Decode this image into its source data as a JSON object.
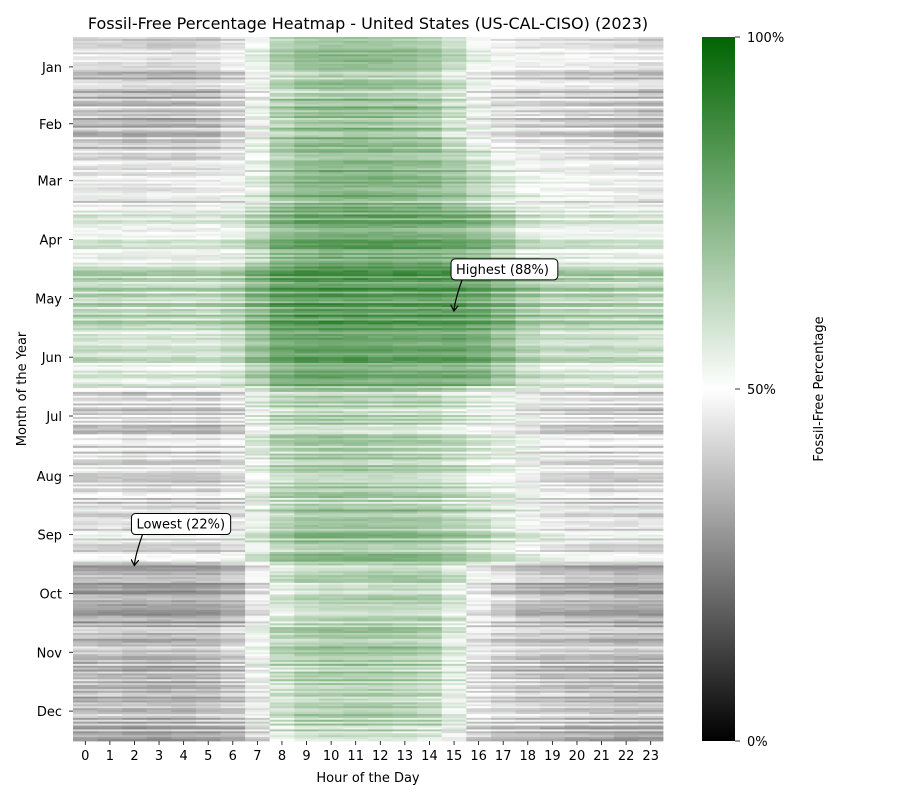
{
  "chart_data": {
    "type": "heatmap",
    "title": "Fossil-Free Percentage Heatmap - United States (US-CAL-CISO) (2023)",
    "xlabel": "Hour of the Day",
    "ylabel": "Month of the Year",
    "x_ticks": [
      "0",
      "1",
      "2",
      "3",
      "4",
      "5",
      "6",
      "7",
      "8",
      "9",
      "10",
      "11",
      "12",
      "13",
      "14",
      "15",
      "16",
      "17",
      "18",
      "19",
      "20",
      "21",
      "22",
      "23"
    ],
    "y_ticks": [
      "Jan",
      "Feb",
      "Mar",
      "Apr",
      "May",
      "Jun",
      "Jul",
      "Aug",
      "Sep",
      "Oct",
      "Nov",
      "Dec"
    ],
    "days_per_month": [
      31,
      28,
      31,
      30,
      31,
      30,
      31,
      31,
      30,
      31,
      30,
      31
    ],
    "value_range": [
      0,
      100
    ],
    "colorbar": {
      "label": "Fossil-Free Percentage",
      "ticks": [
        "0%",
        "50%",
        "100%"
      ],
      "colors": {
        "low": "#000000",
        "mid": "#ffffff",
        "high": "#006400"
      }
    },
    "monthly_hourly_avg": [
      [
        40,
        40,
        39,
        38,
        38,
        39,
        42,
        50,
        62,
        66,
        67,
        67,
        67,
        66,
        64,
        58,
        49,
        45,
        43,
        43,
        42,
        42,
        41,
        40
      ],
      [
        39,
        39,
        38,
        38,
        38,
        39,
        42,
        52,
        66,
        70,
        71,
        71,
        71,
        70,
        68,
        61,
        51,
        46,
        44,
        43,
        42,
        41,
        40,
        39
      ],
      [
        46,
        46,
        45,
        45,
        45,
        46,
        48,
        55,
        68,
        72,
        73,
        73,
        73,
        72,
        71,
        68,
        62,
        56,
        52,
        50,
        49,
        48,
        47,
        46
      ],
      [
        54,
        54,
        53,
        53,
        53,
        53,
        55,
        63,
        73,
        76,
        77,
        77,
        77,
        77,
        76,
        75,
        72,
        66,
        58,
        55,
        55,
        55,
        54,
        54
      ],
      [
        63,
        63,
        62,
        62,
        62,
        62,
        64,
        72,
        79,
        81,
        81,
        81,
        80,
        80,
        80,
        80,
        78,
        73,
        67,
        64,
        64,
        64,
        63,
        63
      ],
      [
        59,
        59,
        58,
        58,
        58,
        58,
        60,
        69,
        77,
        79,
        79,
        79,
        78,
        78,
        78,
        78,
        76,
        70,
        63,
        60,
        60,
        60,
        59,
        59
      ],
      [
        42,
        42,
        41,
        41,
        41,
        40,
        44,
        53,
        62,
        64,
        64,
        64,
        63,
        63,
        62,
        59,
        55,
        52,
        48,
        44,
        43,
        42,
        42,
        42
      ],
      [
        43,
        43,
        42,
        42,
        42,
        41,
        44,
        53,
        62,
        65,
        65,
        65,
        64,
        64,
        63,
        60,
        56,
        53,
        49,
        45,
        44,
        43,
        43,
        43
      ],
      [
        46,
        46,
        45,
        45,
        45,
        44,
        47,
        56,
        66,
        70,
        70,
        70,
        70,
        70,
        69,
        66,
        62,
        58,
        53,
        49,
        47,
        46,
        46,
        46
      ],
      [
        34,
        34,
        33,
        33,
        33,
        33,
        36,
        46,
        58,
        62,
        63,
        63,
        64,
        64,
        64,
        58,
        48,
        42,
        38,
        37,
        36,
        35,
        34,
        34
      ],
      [
        37,
        37,
        36,
        36,
        36,
        37,
        40,
        50,
        62,
        65,
        66,
        66,
        66,
        65,
        64,
        55,
        45,
        41,
        39,
        38,
        38,
        37,
        36,
        36
      ],
      [
        36,
        36,
        35,
        35,
        35,
        36,
        38,
        46,
        58,
        62,
        63,
        63,
        63,
        62,
        61,
        52,
        44,
        41,
        40,
        39,
        38,
        37,
        36,
        36
      ]
    ],
    "annotations": [
      {
        "text": "Highest (88%)",
        "month": "May",
        "day": 22,
        "hour": 15
      },
      {
        "text": "Lowest (22%)",
        "month": "Oct",
        "day": 1,
        "hour": 2
      }
    ]
  }
}
